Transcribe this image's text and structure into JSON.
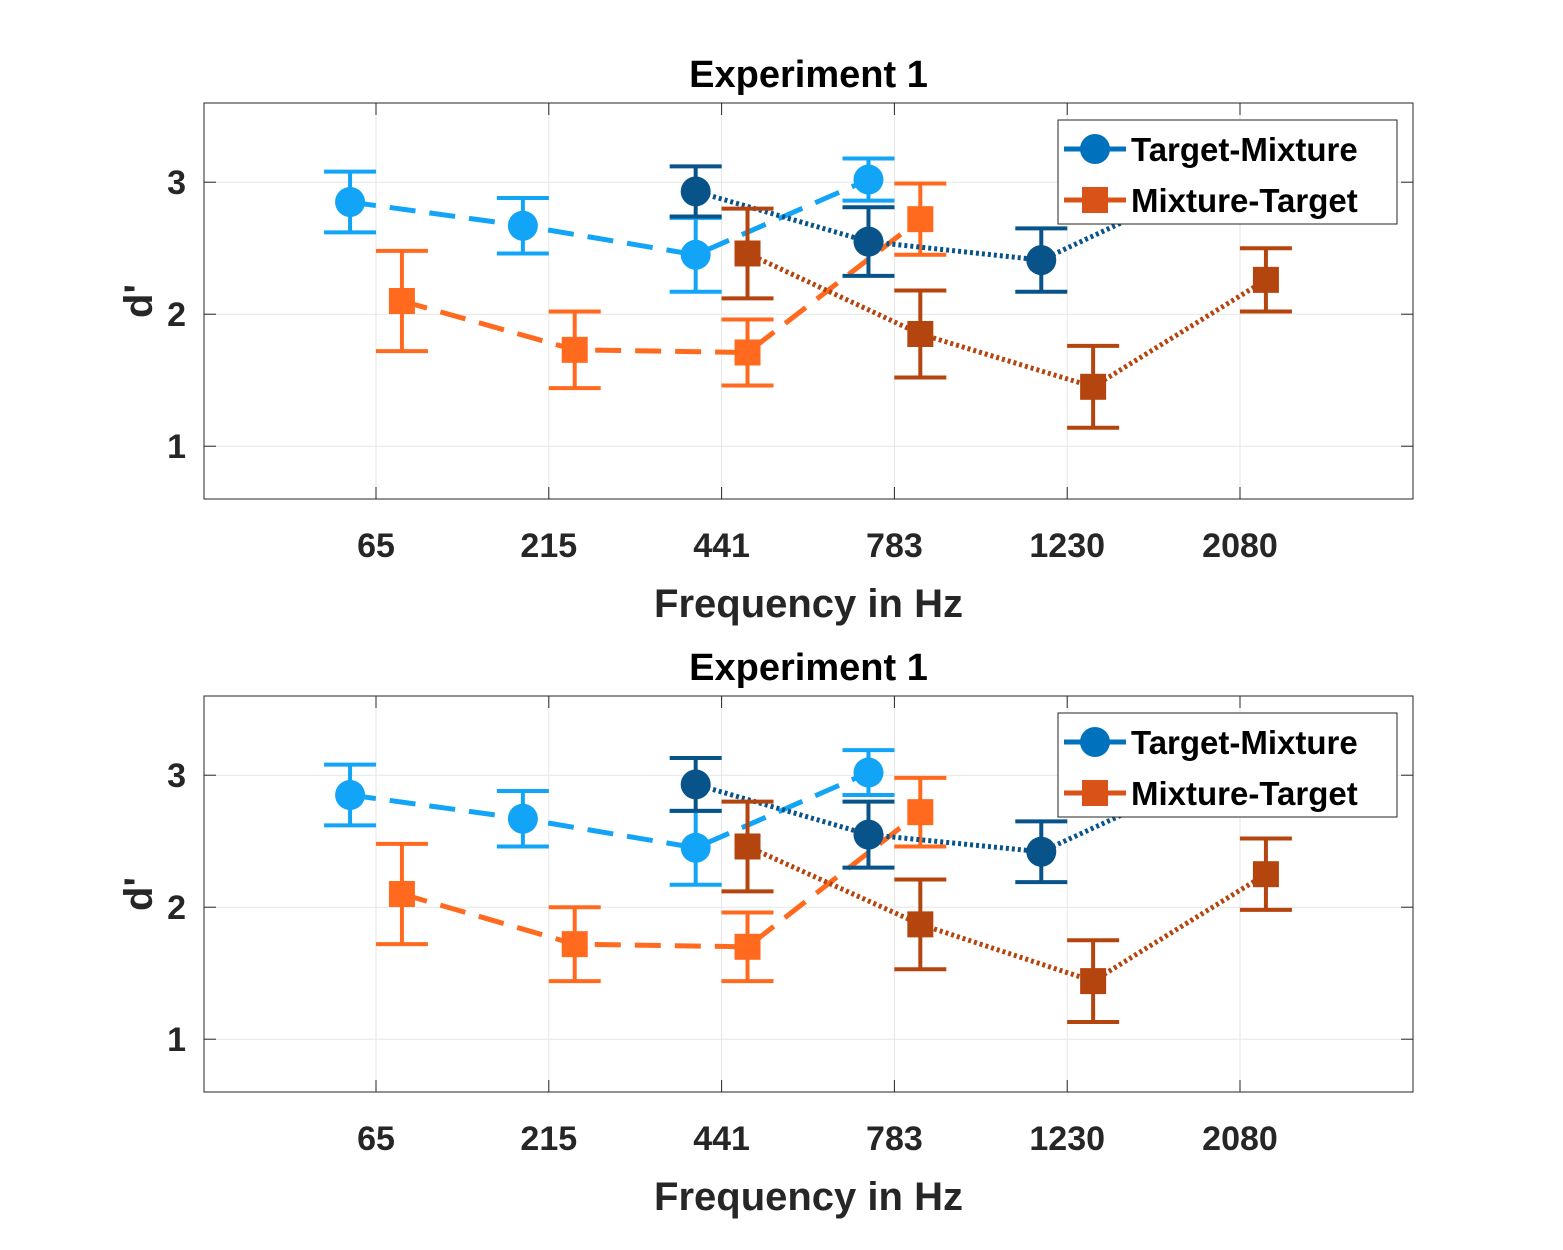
{
  "colors": {
    "tm_light": "#12A4F7",
    "tm_dark": "#08548A",
    "mt_light": "#FF6A1F",
    "mt_dark": "#B5450F",
    "legend_tm": "#0072BD",
    "legend_mt": "#D95319",
    "grid": "#E6E6E6",
    "axes": "#262626"
  },
  "chart_data": [
    {
      "type": "line",
      "title": "Experiment 1",
      "xlabel": "Frequency in Hz",
      "ylabel": "d'",
      "categories": [
        "65",
        "215",
        "441",
        "783",
        "1230",
        "2080"
      ],
      "ylim": [
        0.6,
        3.6
      ],
      "yticks": [
        1,
        2,
        3
      ],
      "grid": true,
      "legend_position": "top-right",
      "legend": [
        "Target-Mixture",
        "Mixture-Target"
      ],
      "series": [
        {
          "name": "Target-Mixture",
          "group": "first",
          "line": "dashed",
          "color": "tm_light",
          "marker": "circle",
          "x": [
            0.85,
            1.85,
            2.85,
            3.85
          ],
          "y": [
            2.85,
            2.67,
            2.45,
            3.02
          ],
          "err": [
            0.23,
            0.21,
            0.28,
            0.16
          ]
        },
        {
          "name": "Mixture-Target",
          "group": "first",
          "line": "dashed",
          "color": "mt_light",
          "marker": "square",
          "x": [
            1.15,
            2.15,
            3.15,
            4.15
          ],
          "y": [
            2.1,
            1.73,
            1.71,
            2.72
          ],
          "err": [
            0.38,
            0.29,
            0.25,
            0.27
          ]
        },
        {
          "name": "Target-Mixture",
          "group": "second",
          "line": "dotted",
          "color": "tm_dark",
          "marker": "circle",
          "x": [
            2.85,
            3.85,
            4.85,
            5.85
          ],
          "y": [
            2.93,
            2.55,
            2.41,
            3.02
          ],
          "err": [
            0.19,
            0.26,
            0.24,
            0.2
          ]
        },
        {
          "name": "Mixture-Target",
          "group": "second",
          "line": "dotted",
          "color": "mt_dark",
          "marker": "square",
          "x": [
            3.15,
            4.15,
            5.15,
            6.15
          ],
          "y": [
            2.46,
            1.85,
            1.45,
            2.26
          ],
          "err": [
            0.34,
            0.33,
            0.31,
            0.24
          ]
        }
      ]
    },
    {
      "type": "line",
      "title": "Experiment 1",
      "xlabel": "Frequency in Hz",
      "ylabel": "d'",
      "categories": [
        "65",
        "215",
        "441",
        "783",
        "1230",
        "2080"
      ],
      "ylim": [
        0.6,
        3.6
      ],
      "yticks": [
        1,
        2,
        3
      ],
      "grid": true,
      "legend_position": "top-right",
      "legend": [
        "Target-Mixture",
        "Mixture-Target"
      ],
      "series": [
        {
          "name": "Target-Mixture",
          "group": "first",
          "line": "dashed",
          "color": "tm_light",
          "marker": "circle",
          "x": [
            0.85,
            1.85,
            2.85,
            3.85
          ],
          "y": [
            2.85,
            2.67,
            2.45,
            3.02
          ],
          "err": [
            0.23,
            0.21,
            0.28,
            0.17
          ]
        },
        {
          "name": "Mixture-Target",
          "group": "first",
          "line": "dashed",
          "color": "mt_light",
          "marker": "square",
          "x": [
            1.15,
            2.15,
            3.15,
            4.15
          ],
          "y": [
            2.1,
            1.72,
            1.7,
            2.72
          ],
          "err": [
            0.38,
            0.28,
            0.26,
            0.26
          ]
        },
        {
          "name": "Target-Mixture",
          "group": "second",
          "line": "dotted",
          "color": "tm_dark",
          "marker": "circle",
          "x": [
            2.85,
            3.85,
            4.85,
            5.85
          ],
          "y": [
            2.93,
            2.55,
            2.42,
            3.02
          ],
          "err": [
            0.2,
            0.25,
            0.23,
            0.2
          ]
        },
        {
          "name": "Mixture-Target",
          "group": "second",
          "line": "dotted",
          "color": "mt_dark",
          "marker": "square",
          "x": [
            3.15,
            4.15,
            5.15,
            6.15
          ],
          "y": [
            2.46,
            1.87,
            1.44,
            2.25
          ],
          "err": [
            0.34,
            0.34,
            0.31,
            0.27
          ]
        }
      ]
    }
  ]
}
